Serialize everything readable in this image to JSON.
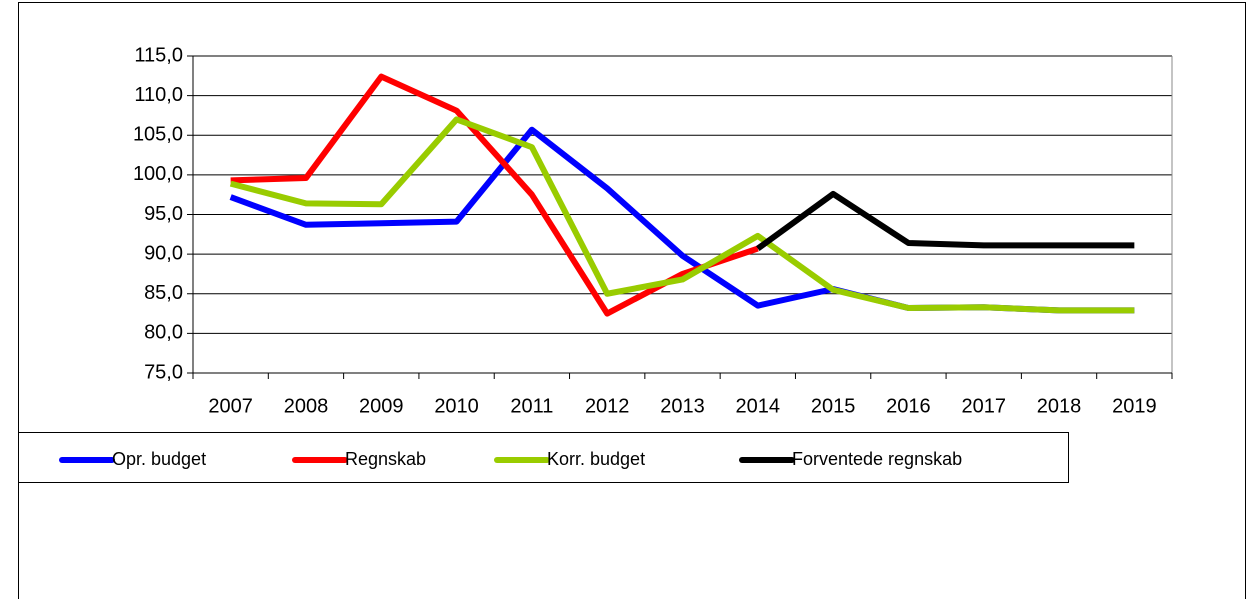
{
  "chart_data": {
    "type": "line",
    "categories": [
      "2007",
      "2008",
      "2009",
      "2010",
      "2011",
      "2012",
      "2013",
      "2014",
      "2015",
      "2016",
      "2017",
      "2018",
      "2019"
    ],
    "series": [
      {
        "name": "Opr. budget",
        "color": "#0000ff",
        "values": [
          97.2,
          93.7,
          93.9,
          94.1,
          105.7,
          98.3,
          89.8,
          83.5,
          85.6,
          83.2,
          83.3,
          82.9,
          82.9
        ]
      },
      {
        "name": "Regnskab",
        "color": "#ff0000",
        "values": [
          99.3,
          99.6,
          112.4,
          108.1,
          97.5,
          82.5,
          87.5,
          90.7,
          null,
          null,
          null,
          null,
          null
        ]
      },
      {
        "name": "Korr. budget",
        "color": "#99cc00",
        "values": [
          98.9,
          96.4,
          96.3,
          107.0,
          103.5,
          85.0,
          86.8,
          92.3,
          85.5,
          83.2,
          83.3,
          82.9,
          82.9
        ]
      },
      {
        "name": "Forventede regnskab",
        "color": "#000000",
        "values": [
          null,
          null,
          null,
          null,
          null,
          null,
          null,
          90.7,
          97.6,
          91.4,
          91.1,
          91.1,
          91.1
        ]
      }
    ],
    "ylim": [
      75,
      115
    ],
    "yticks": [
      {
        "value": 75,
        "label": "75,0"
      },
      {
        "value": 80,
        "label": "80,0"
      },
      {
        "value": 85,
        "label": "85,0"
      },
      {
        "value": 90,
        "label": "90,0"
      },
      {
        "value": 95,
        "label": "95,0"
      },
      {
        "value": 100,
        "label": "100,0"
      },
      {
        "value": 105,
        "label": "105,0"
      },
      {
        "value": 110,
        "label": "110,0"
      },
      {
        "value": 115,
        "label": "115,0"
      }
    ],
    "grid": true
  }
}
